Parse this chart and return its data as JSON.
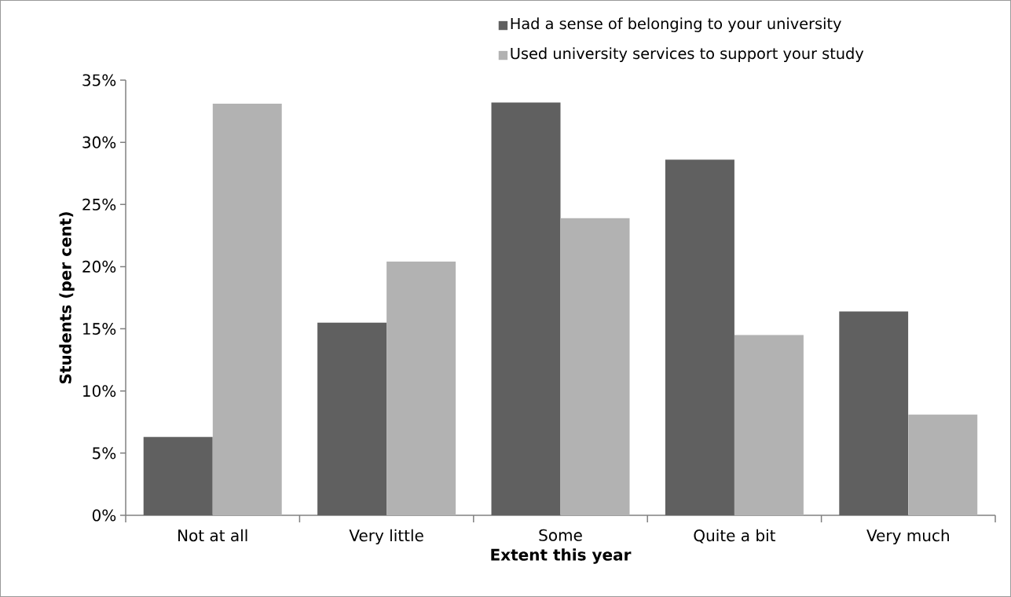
{
  "chart_data": {
    "type": "bar",
    "categories": [
      "Not at all",
      "Very little",
      "Some",
      "Quite a bit",
      "Very much"
    ],
    "series": [
      {
        "name": "Had a sense of belonging to your university",
        "color": "#606060",
        "values": [
          6.3,
          15.5,
          33.2,
          28.6,
          16.4
        ]
      },
      {
        "name": "Used university services to support your study",
        "color": "#b2b2b2",
        "values": [
          33.1,
          20.4,
          23.9,
          14.5,
          8.1
        ]
      }
    ],
    "xlabel": "Extent this year",
    "ylabel": "Students (per cent)",
    "ylim": [
      0,
      35
    ],
    "yticks": [
      {
        "value": 0,
        "label": "0%"
      },
      {
        "value": 5,
        "label": "5%"
      },
      {
        "value": 10,
        "label": "10%"
      },
      {
        "value": 15,
        "label": "15%"
      },
      {
        "value": 20,
        "label": "20%"
      },
      {
        "value": 25,
        "label": "25%"
      },
      {
        "value": 30,
        "label": "30%"
      },
      {
        "value": 35,
        "label": "35%"
      }
    ],
    "grid": false,
    "legend": "top right"
  }
}
